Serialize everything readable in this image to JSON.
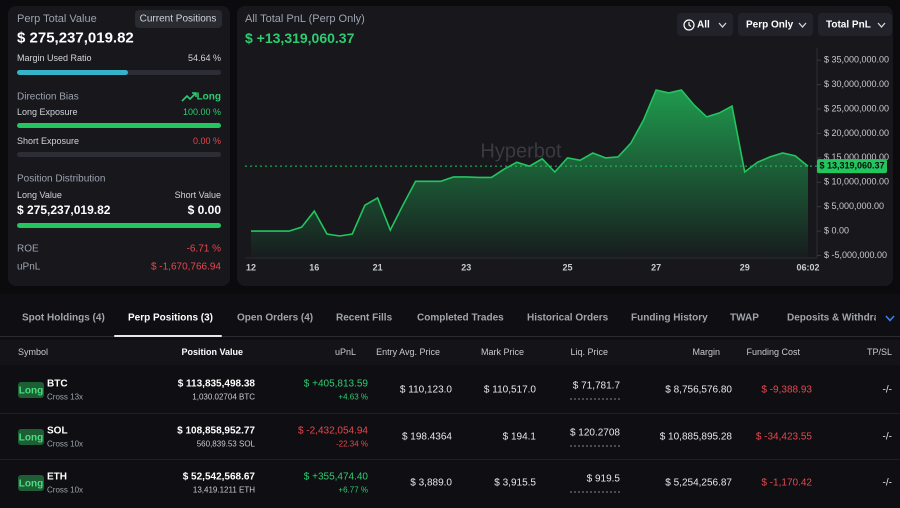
{
  "summary": {
    "title": "Perp Total Value",
    "button": "Current Positions",
    "total_value": "$ 275,237,019.82",
    "margin": {
      "label": "Margin Used Ratio",
      "value": 54.64,
      "value_label": "54.64 %"
    },
    "direction_bias": {
      "label": "Direction Bias",
      "value": "Long"
    },
    "long_exposure": {
      "label": "Long Exposure",
      "value": 100,
      "value_label": "100.00 %"
    },
    "short_exposure": {
      "label": "Short Exposure",
      "value": 0,
      "value_label": "0.00 %"
    },
    "distribution": {
      "title": "Position Distribution",
      "long_label": "Long Value",
      "short_label": "Short Value",
      "long_value": "$ 275,237,019.82",
      "short_value": "$ 0.00"
    },
    "roe": {
      "label": "ROE",
      "value": "-6.71 %"
    },
    "upnl": {
      "label": "uPnL",
      "value": "$ -1,670,766.94"
    }
  },
  "toolbar": {
    "filters": [
      "All",
      "Perp Only",
      "Total PnL"
    ]
  },
  "watermark": "Hyperbot",
  "chart_data": {
    "type": "area",
    "title": "All Total PnL (Perp Only)",
    "subtitle": "$ +13,319,060.37",
    "categories": [
      "12",
      null,
      null,
      null,
      null,
      "16",
      null,
      null,
      null,
      null,
      "21",
      null,
      null,
      null,
      null,
      null,
      null,
      "23",
      null,
      null,
      null,
      null,
      null,
      null,
      null,
      "25",
      null,
      null,
      null,
      null,
      null,
      null,
      "27",
      null,
      null,
      null,
      null,
      null,
      null,
      "29",
      null,
      null,
      null,
      null,
      "06:02"
    ],
    "values": [
      0,
      0,
      0,
      0,
      800000,
      4100000,
      -600000,
      -1000000,
      -600000,
      5300000,
      6800000,
      200000,
      5300000,
      10200000,
      10200000,
      10200000,
      11100000,
      11100000,
      11000000,
      11000000,
      12700000,
      14100000,
      13300000,
      14800000,
      12100000,
      15000000,
      14500000,
      16000000,
      15000000,
      15200000,
      18000000,
      22700000,
      28900000,
      28300000,
      28900000,
      25800000,
      23400000,
      24200000,
      25600000,
      12100000,
      14100000,
      15200000,
      16000000,
      15400000,
      13300000
    ],
    "color": "#22c55e",
    "ylim": [
      -5300000,
      37500000
    ],
    "yticks": [
      {
        "value": 35000000,
        "label": "$ 35,000,000.00"
      },
      {
        "value": 30000000,
        "label": "$ 30,000,000.00"
      },
      {
        "value": 25000000,
        "label": "$ 25,000,000.00"
      },
      {
        "value": 20000000,
        "label": "$ 20,000,000.00"
      },
      {
        "value": 15000000,
        "label": "$ 15,000,000.00"
      },
      {
        "value": 10000000,
        "label": "$ 10,000,000.00"
      },
      {
        "value": 5000000,
        "label": "$ 5,000,000.00"
      },
      {
        "value": 0,
        "label": "$ 0.00"
      },
      {
        "value": -5000000,
        "label": "$ -5,000,000.00"
      }
    ],
    "grid": false,
    "current": {
      "value": 13319060.37,
      "label": "$ 13,319,060.37"
    }
  },
  "tabs": {
    "items": [
      "Spot Holdings (4)",
      "Perp Positions (3)",
      "Open Orders (4)",
      "Recent Fills",
      "Completed Trades",
      "Historical Orders",
      "Funding History",
      "TWAP",
      "Deposits & Withdraw"
    ],
    "active": 1
  },
  "table": {
    "headers": [
      "Symbol",
      "Position Value",
      "uPnL",
      "Entry Avg. Price",
      "Mark Price",
      "Liq. Price",
      "Margin",
      "Funding Cost",
      "TP/SL"
    ],
    "rows": [
      {
        "side": "Long",
        "symbol": "BTC",
        "mode": "Cross 13x",
        "position_value": "$ 113,835,498.38",
        "size": "1,030.02704 BTC",
        "upnl": "$ +405,813.59",
        "upnl_pct": "+4.63 %",
        "entry": "$ 110,123.0",
        "mark": "$ 110,517.0",
        "liq": "$ 71,781.7",
        "margin": "$ 8,756,576.80",
        "funding": "$ -9,388.93",
        "tpsl": "-/-"
      },
      {
        "side": "Long",
        "symbol": "SOL",
        "mode": "Cross 10x",
        "position_value": "$ 108,858,952.77",
        "size": "560,839.53 SOL",
        "upnl": "$ -2,432,054.94",
        "upnl_pct": "-22.34 %",
        "entry": "$ 198.4364",
        "mark": "$ 194.1",
        "liq": "$ 120.2708",
        "margin": "$ 10,885,895.28",
        "funding": "$ -34,423.55",
        "tpsl": "-/-"
      },
      {
        "side": "Long",
        "symbol": "ETH",
        "mode": "Cross 10x",
        "position_value": "$ 52,542,568.67",
        "size": "13,419.1211 ETH",
        "upnl": "$ +355,474.40",
        "upnl_pct": "+6.77 %",
        "entry": "$ 3,889.0",
        "mark": "$ 3,915.5",
        "liq": "$ 919.5",
        "margin": "$ 5,254,256.87",
        "funding": "$ -1,170.42",
        "tpsl": "-/-"
      }
    ]
  }
}
